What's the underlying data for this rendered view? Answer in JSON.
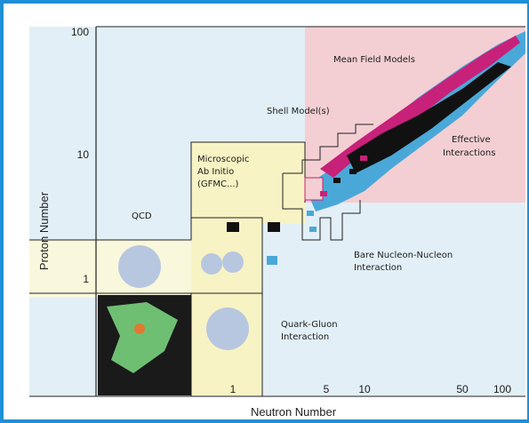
{
  "colors": {
    "frame": "#1f8fd6",
    "blue_region": "#e2eff6",
    "pink_region": "#f3cfd3",
    "yellow_region": "#f7f3c4",
    "lightyellow_region": "#f9f7dc",
    "nuclide_blue": "#4aa8d8",
    "nuclide_magenta": "#c7217a",
    "nuclide_black": "#111111"
  },
  "axes": {
    "x_label": "Neutron Number",
    "y_label": "Proton Number",
    "x_ticks": [
      "1",
      "5",
      "10",
      "50",
      "100"
    ],
    "y_ticks": [
      "100",
      "10",
      "1"
    ]
  },
  "regions": {
    "mean_field": "Mean Field Models",
    "shell_model": "Shell Model(s)",
    "effective_1": "Effective",
    "effective_2": "Interactions",
    "microscopic_1": "Microscopic",
    "microscopic_2": "Ab Initio",
    "microscopic_3": "(GFMC...)",
    "qcd": "QCD",
    "bare_1": "Bare Nucleon-Nucleon",
    "bare_2": "Interaction",
    "quark_1": "Quark-Gluon",
    "quark_2": "Interaction"
  }
}
